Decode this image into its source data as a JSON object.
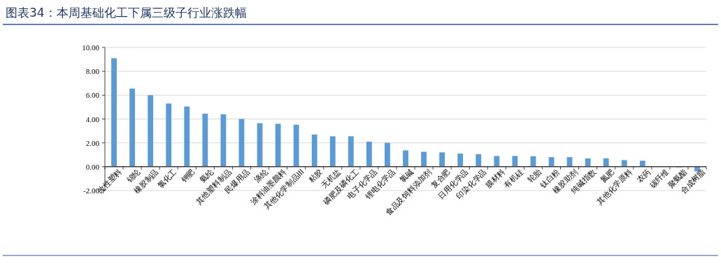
{
  "chart_data": {
    "type": "bar",
    "title": "图表34：本周基础化工下属三级子行业涨跌幅",
    "categories": [
      "改性塑料",
      "锦纶",
      "橡胶制品",
      "氯化工",
      "钾肥",
      "氨纶",
      "其他塑料制品",
      "民爆用品",
      "涤纶",
      "涂料油墨颜料",
      "其他化学制品III",
      "粘胶",
      "无机盐",
      "磷肥及磷化工",
      "电子化学品",
      "锂电化学品",
      "氯碱",
      "食品及饲料添加剂",
      "复合肥",
      "日用化学品",
      "印染化学品",
      "膜材料",
      "有机硅",
      "轮胎",
      "钛白粉",
      "橡胶助剂",
      "纯碱指数",
      "氮肥",
      "其他化学原料",
      "农药",
      "碳纤维",
      "聚氨酯",
      "合成树脂"
    ],
    "values": [
      9.1,
      6.55,
      6.0,
      5.3,
      5.05,
      4.45,
      4.4,
      4.0,
      3.65,
      3.6,
      3.52,
      2.7,
      2.55,
      2.55,
      2.1,
      2.0,
      1.37,
      1.25,
      1.2,
      1.1,
      1.05,
      0.9,
      0.9,
      0.88,
      0.8,
      0.8,
      0.7,
      0.7,
      0.55,
      0.5,
      0.0,
      -0.05,
      -0.4
    ],
    "color": "#5b9bd5",
    "ylim": [
      -2,
      10
    ],
    "yticks": [
      {
        "value": -2,
        "label": "-2.00"
      },
      {
        "value": 0,
        "label": "0.00"
      },
      {
        "value": 2,
        "label": "2.00"
      },
      {
        "value": 4,
        "label": "4.00"
      },
      {
        "value": 6,
        "label": "6.00"
      },
      {
        "value": 8,
        "label": "8.00"
      },
      {
        "value": 10,
        "label": "10.00"
      }
    ],
    "grid": "y"
  }
}
